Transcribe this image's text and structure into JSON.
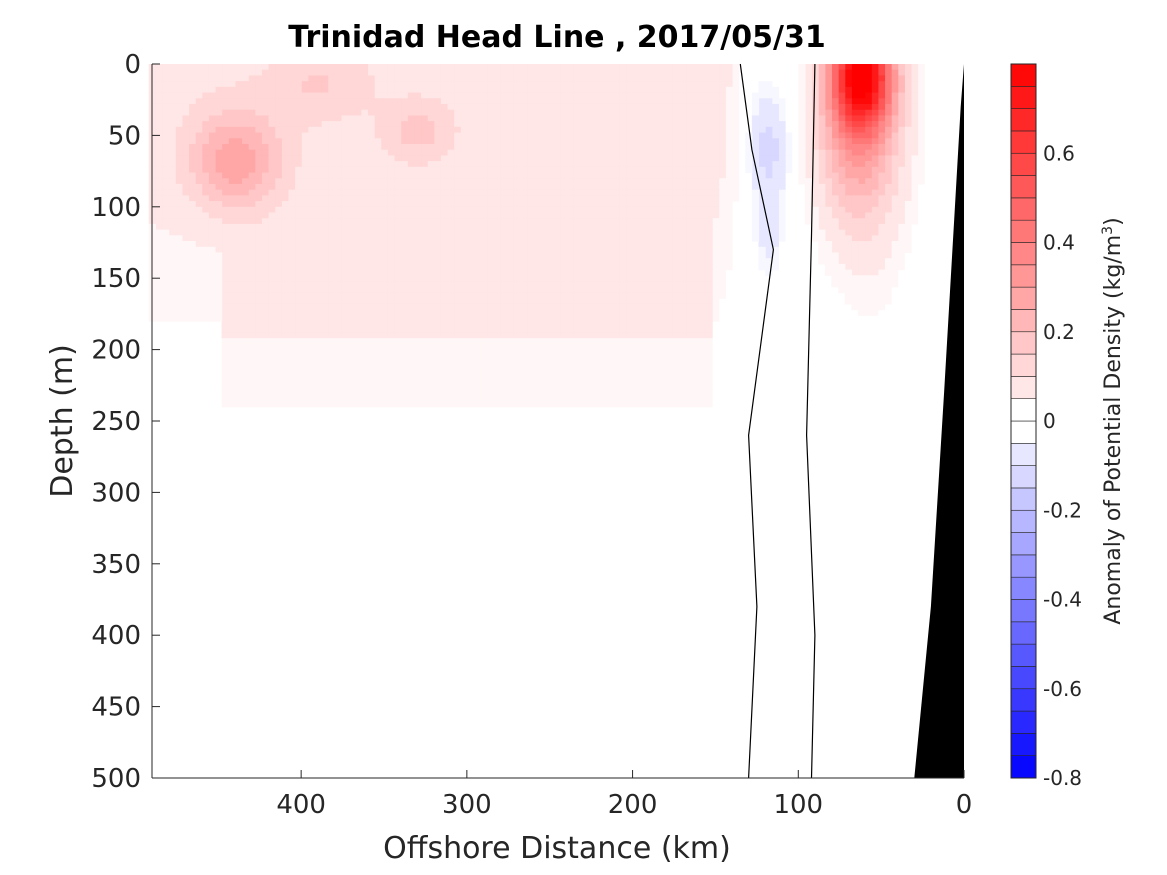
{
  "chart_data": {
    "type": "heatmap",
    "title": "Trinidad Head Line , 2017/05/31",
    "xlabel": "Offshore Distance (km)",
    "ylabel": "Depth (m)",
    "x_range": [
      490,
      0
    ],
    "y_range": [
      0,
      500
    ],
    "x_reversed": true,
    "y_reversed": true,
    "x_ticks": [
      400,
      300,
      200,
      100,
      0
    ],
    "y_ticks": [
      0,
      50,
      100,
      150,
      200,
      250,
      300,
      350,
      400,
      450,
      500
    ],
    "colorbar": {
      "label": "Anomaly of Potential Density (kg/m",
      "label_superscript": "3",
      "label_suffix": ")",
      "range": [
        -0.8,
        0.8
      ],
      "step": 0.05,
      "ticks": [
        -0.8,
        -0.6,
        -0.4,
        -0.2,
        0,
        0.2,
        0.4,
        0.6
      ],
      "colormap": "blue-white-red",
      "color_negative": "#0000ff",
      "color_zero": "#ffffff",
      "color_positive": "#ff0000"
    },
    "bathymetry_color": "#000000",
    "features": [
      {
        "name": "surface maximum near shore",
        "x_km": 62,
        "depth_m": 8,
        "value": 0.8
      },
      {
        "name": "offshore maximum",
        "x_km": 440,
        "depth_m": 68,
        "value": 0.5
      },
      {
        "name": "secondary maximum",
        "x_km": 330,
        "depth_m": 48,
        "value": 0.38
      },
      {
        "name": "negative anomaly core",
        "x_km": 118,
        "depth_m": 60,
        "value": -0.08
      },
      {
        "name": "zero anomaly at depth",
        "x_km": 250,
        "depth_m": 400,
        "value": 0.0
      }
    ],
    "anomaly_blobs": [
      {
        "x_km": 62,
        "depth_m": 8,
        "sx_km": 18,
        "sy_m": 35,
        "value": 0.6
      },
      {
        "x_km": 65,
        "depth_m": 40,
        "sx_km": 24,
        "sy_m": 70,
        "value": 0.3
      },
      {
        "x_km": 440,
        "depth_m": 68,
        "sx_km": 28,
        "sy_m": 35,
        "value": 0.22
      },
      {
        "x_km": 330,
        "depth_m": 48,
        "sx_km": 22,
        "sy_m": 22,
        "value": 0.1
      },
      {
        "x_km": 390,
        "depth_m": 15,
        "sx_km": 30,
        "sy_m": 25,
        "value": 0.08
      },
      {
        "x_km": 118,
        "depth_m": 60,
        "sx_km": 12,
        "sy_m": 40,
        "value": -0.12
      },
      {
        "x_km": 118,
        "depth_m": 120,
        "sx_km": 8,
        "sy_m": 30,
        "value": -0.06
      }
    ],
    "contours": [
      {
        "level": 0,
        "points": [
          [
            135,
            0
          ],
          [
            128,
            60
          ],
          [
            115,
            130
          ],
          [
            130,
            260
          ],
          [
            125,
            380
          ],
          [
            130,
            500
          ]
        ]
      },
      {
        "level": 0,
        "points": [
          [
            90,
            0
          ],
          [
            92,
            120
          ],
          [
            95,
            260
          ],
          [
            90,
            400
          ],
          [
            92,
            500
          ]
        ]
      }
    ]
  }
}
